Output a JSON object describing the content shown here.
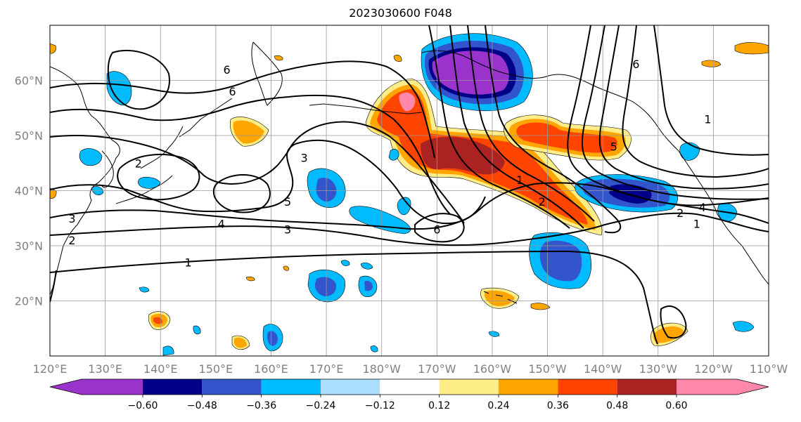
{
  "title": "2023030600 F048",
  "map": {
    "lon_range": [
      120,
      250
    ],
    "lat_range": [
      10,
      70
    ],
    "lon_ticks": [
      {
        "value": 120,
        "label": "120°E"
      },
      {
        "value": 130,
        "label": "130°E"
      },
      {
        "value": 140,
        "label": "140°E"
      },
      {
        "value": 150,
        "label": "150°E"
      },
      {
        "value": 160,
        "label": "160°E"
      },
      {
        "value": 170,
        "label": "170°E"
      },
      {
        "value": 180,
        "label": "180°W"
      },
      {
        "value": 190,
        "label": "170°W"
      },
      {
        "value": 200,
        "label": "160°W"
      },
      {
        "value": 210,
        "label": "150°W"
      },
      {
        "value": 220,
        "label": "140°W"
      },
      {
        "value": 230,
        "label": "130°W"
      },
      {
        "value": 240,
        "label": "120°W"
      },
      {
        "value": 250,
        "label": "110°W"
      }
    ],
    "lat_ticks": [
      {
        "value": 20,
        "label": "20°N"
      },
      {
        "value": 30,
        "label": "30°N"
      },
      {
        "value": 40,
        "label": "40°N"
      },
      {
        "value": 50,
        "label": "50°N"
      },
      {
        "value": 60,
        "label": "60°N"
      }
    ],
    "grid": true
  },
  "colorbar": {
    "extend": "both",
    "levels": [
      "-0.60",
      "−0.48",
      "−0.36",
      "−0.24",
      "−0.12",
      "0.12",
      "0.24",
      "0.36",
      "0.48",
      "0.60"
    ],
    "level_labels": [
      "−0.60",
      "−0.48",
      "−0.36",
      "−0.24",
      "−0.12",
      "0.12",
      "0.24",
      "0.36",
      "0.48",
      "0.60"
    ],
    "colors": [
      "#9933cc",
      "#000088",
      "#3355cc",
      "#00bbff",
      "#aaddff",
      "#ffffff",
      "#ffee88",
      "#ffa500",
      "#ff4400",
      "#aa2222",
      "#ff88aa"
    ]
  },
  "fields": {
    "negative_anomalies": [
      {
        "lon": 194,
        "lat": 62,
        "value": -0.65
      },
      {
        "lon": 222,
        "lat": 39,
        "value": -0.5
      },
      {
        "lon": 212,
        "lat": 28,
        "value": -0.4
      },
      {
        "lon": 169,
        "lat": 40,
        "value": -0.35
      },
      {
        "lon": 169,
        "lat": 21,
        "value": -0.35
      },
      {
        "lon": 152,
        "lat": 13,
        "value": -0.3
      },
      {
        "lon": 178,
        "lat": 21,
        "value": -0.3
      },
      {
        "lon": 133,
        "lat": 58,
        "value": -0.25
      },
      {
        "lon": 241,
        "lat": 33,
        "value": -0.25
      },
      {
        "lon": 241,
        "lat": 45,
        "value": -0.25
      },
      {
        "lon": 189,
        "lat": 37,
        "value": -0.25
      },
      {
        "lon": 127,
        "lat": 46,
        "value": -0.25
      },
      {
        "lon": 137,
        "lat": 41,
        "value": -0.2
      }
    ],
    "positive_anomalies": [
      {
        "lon": 183,
        "lat": 56,
        "value": 0.6
      },
      {
        "lon": 194,
        "lat": 46,
        "value": 0.5
      },
      {
        "lon": 202,
        "lat": 42,
        "value": 0.45
      },
      {
        "lon": 213,
        "lat": 38,
        "value": 0.4
      },
      {
        "lon": 217,
        "lat": 52,
        "value": 0.35
      },
      {
        "lon": 224,
        "lat": 49,
        "value": 0.35
      },
      {
        "lon": 155,
        "lat": 50,
        "value": 0.3
      },
      {
        "lon": 202,
        "lat": 21,
        "value": 0.3
      },
      {
        "lon": 231,
        "lat": 14,
        "value": 0.3
      },
      {
        "lon": 140,
        "lat": 18,
        "value": 0.35
      },
      {
        "lon": 154,
        "lat": 12,
        "value": 0.3
      }
    ],
    "contour_labels": [
      {
        "lon": 152,
        "lat": 62,
        "text": "6"
      },
      {
        "lon": 153,
        "lat": 58,
        "text": "6"
      },
      {
        "lon": 166,
        "lat": 46,
        "text": "3"
      },
      {
        "lon": 136,
        "lat": 45,
        "text": "2"
      },
      {
        "lon": 163,
        "lat": 38,
        "text": "5"
      },
      {
        "lon": 151,
        "lat": 34,
        "text": "4"
      },
      {
        "lon": 163,
        "lat": 33,
        "text": "3"
      },
      {
        "lon": 124,
        "lat": 35,
        "text": "3"
      },
      {
        "lon": 124,
        "lat": 31,
        "text": "2"
      },
      {
        "lon": 145,
        "lat": 27,
        "text": "1"
      },
      {
        "lon": 190,
        "lat": 33,
        "text": "6"
      },
      {
        "lon": 205,
        "lat": 42,
        "text": "1"
      },
      {
        "lon": 209,
        "lat": 38,
        "text": "2"
      },
      {
        "lon": 222,
        "lat": 48,
        "text": "5"
      },
      {
        "lon": 234,
        "lat": 36,
        "text": "2"
      },
      {
        "lon": 237,
        "lat": 34,
        "text": "1"
      },
      {
        "lon": 238,
        "lat": 37,
        "text": "4"
      },
      {
        "lon": 226,
        "lat": 63,
        "text": "6"
      },
      {
        "lon": 239,
        "lat": 53,
        "text": "1"
      }
    ]
  }
}
